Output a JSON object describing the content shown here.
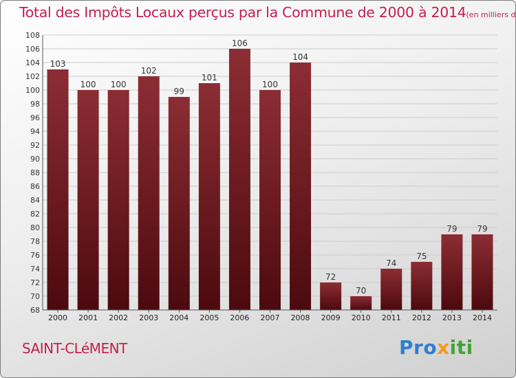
{
  "title": "Total des Impôts Locaux perçus par la Commune de 2000 à 2014",
  "unit_label": "(en milliers d'€)",
  "commune": "SAINT-CLéMENT",
  "brand": {
    "part1": "Pro",
    "part2": "x",
    "part3": "iti"
  },
  "colors": {
    "accent": "#c41e4e",
    "bar_top": "#8c2d34",
    "bar_bottom": "#4c0a0e",
    "grid": "#cccccc"
  },
  "chart_data": {
    "type": "bar",
    "categories": [
      "2000",
      "2001",
      "2002",
      "2003",
      "2004",
      "2005",
      "2006",
      "2007",
      "2008",
      "2009",
      "2010",
      "2011",
      "2012",
      "2013",
      "2014"
    ],
    "values": [
      103,
      100,
      100,
      102,
      99,
      101,
      106,
      100,
      104,
      72,
      70,
      74,
      75,
      79,
      79
    ],
    "ylim": [
      68,
      108
    ],
    "yticks": [
      68,
      70,
      72,
      74,
      76,
      78,
      80,
      82,
      84,
      86,
      88,
      90,
      92,
      94,
      96,
      98,
      100,
      102,
      104,
      106,
      108
    ],
    "grid": true,
    "data_labels": true
  }
}
